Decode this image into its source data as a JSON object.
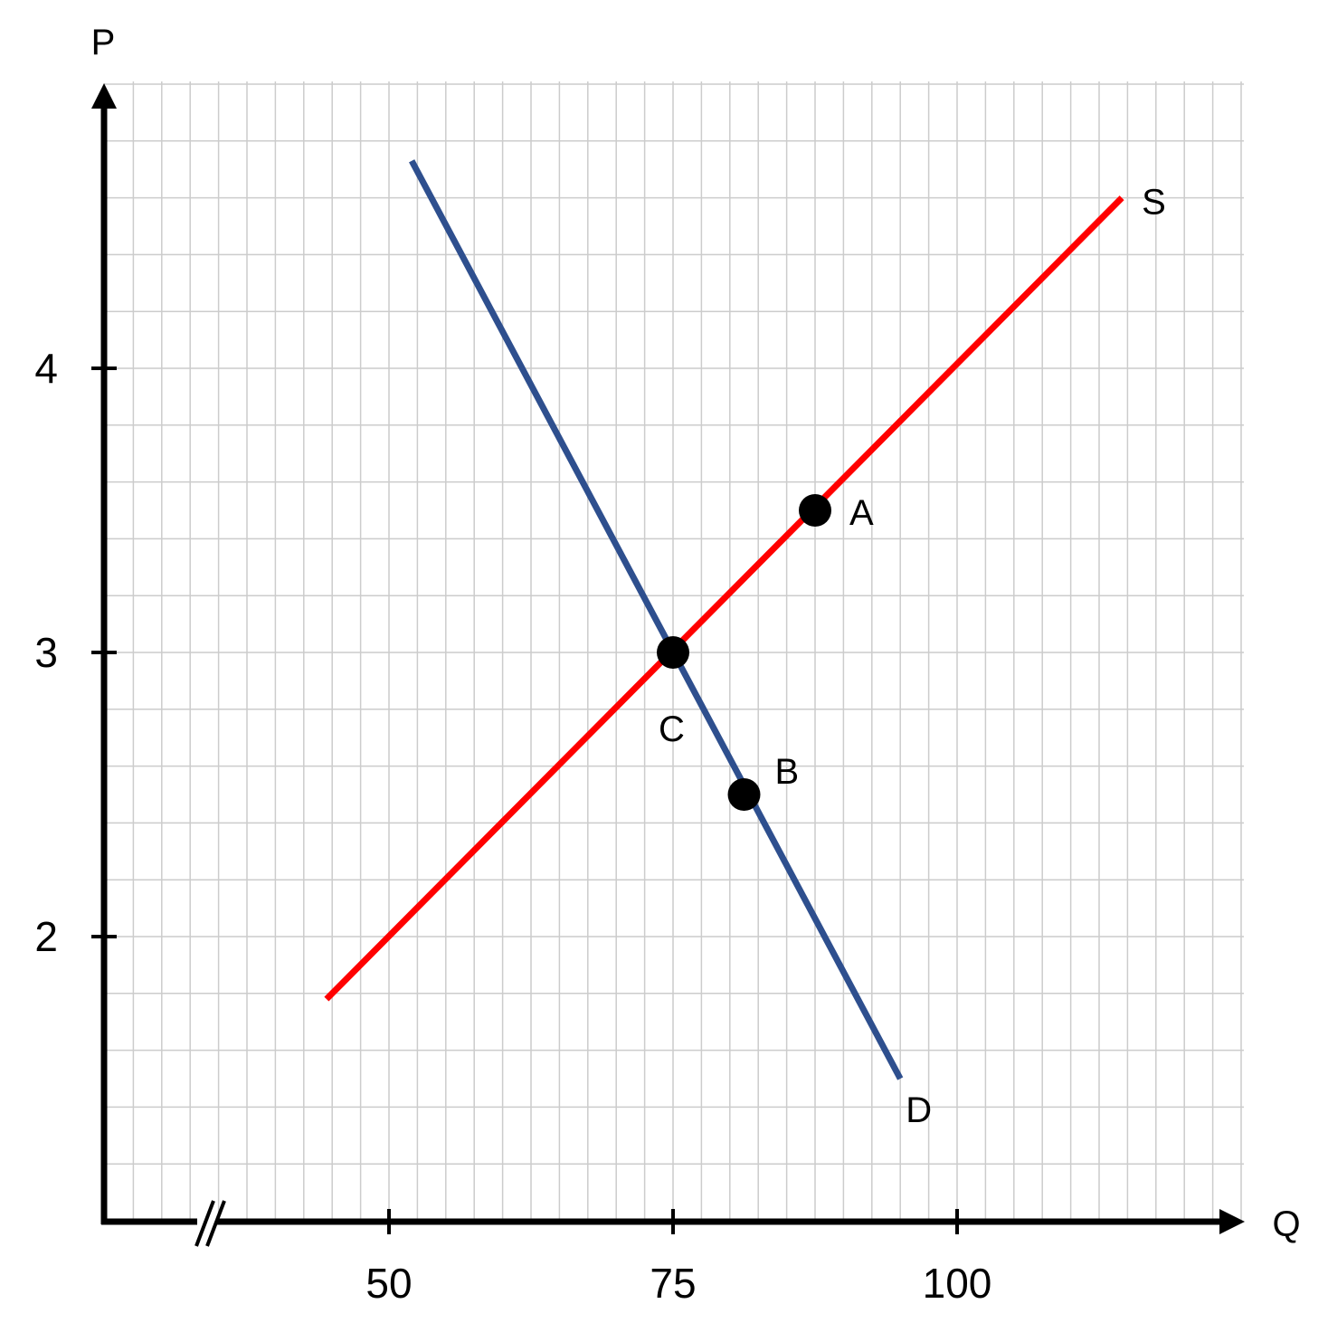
{
  "chart_data": {
    "type": "line",
    "xlabel": "Q",
    "ylabel": "P",
    "x_ticks": [
      50,
      75,
      100
    ],
    "y_ticks": [
      2,
      3,
      4
    ],
    "x_tick_labels": [
      "50",
      "75",
      "100"
    ],
    "y_tick_labels": [
      "2",
      "3",
      "4"
    ],
    "xlim": [
      25,
      125
    ],
    "ylim": [
      1,
      4.85
    ],
    "x_axis_break": true,
    "grid": true,
    "series": [
      {
        "name": "S",
        "color": "#ff0000",
        "x": [
          44.5,
          114.5
        ],
        "y": [
          1.78,
          4.6
        ]
      },
      {
        "name": "D",
        "color": "#2e4f8e",
        "x": [
          52,
          95
        ],
        "y": [
          4.73,
          1.5
        ]
      }
    ],
    "points": [
      {
        "label": "A",
        "x": 87.5,
        "y": 3.5
      },
      {
        "label": "B",
        "x": 81.25,
        "y": 2.5
      },
      {
        "label": "C",
        "x": 75,
        "y": 3
      }
    ]
  }
}
